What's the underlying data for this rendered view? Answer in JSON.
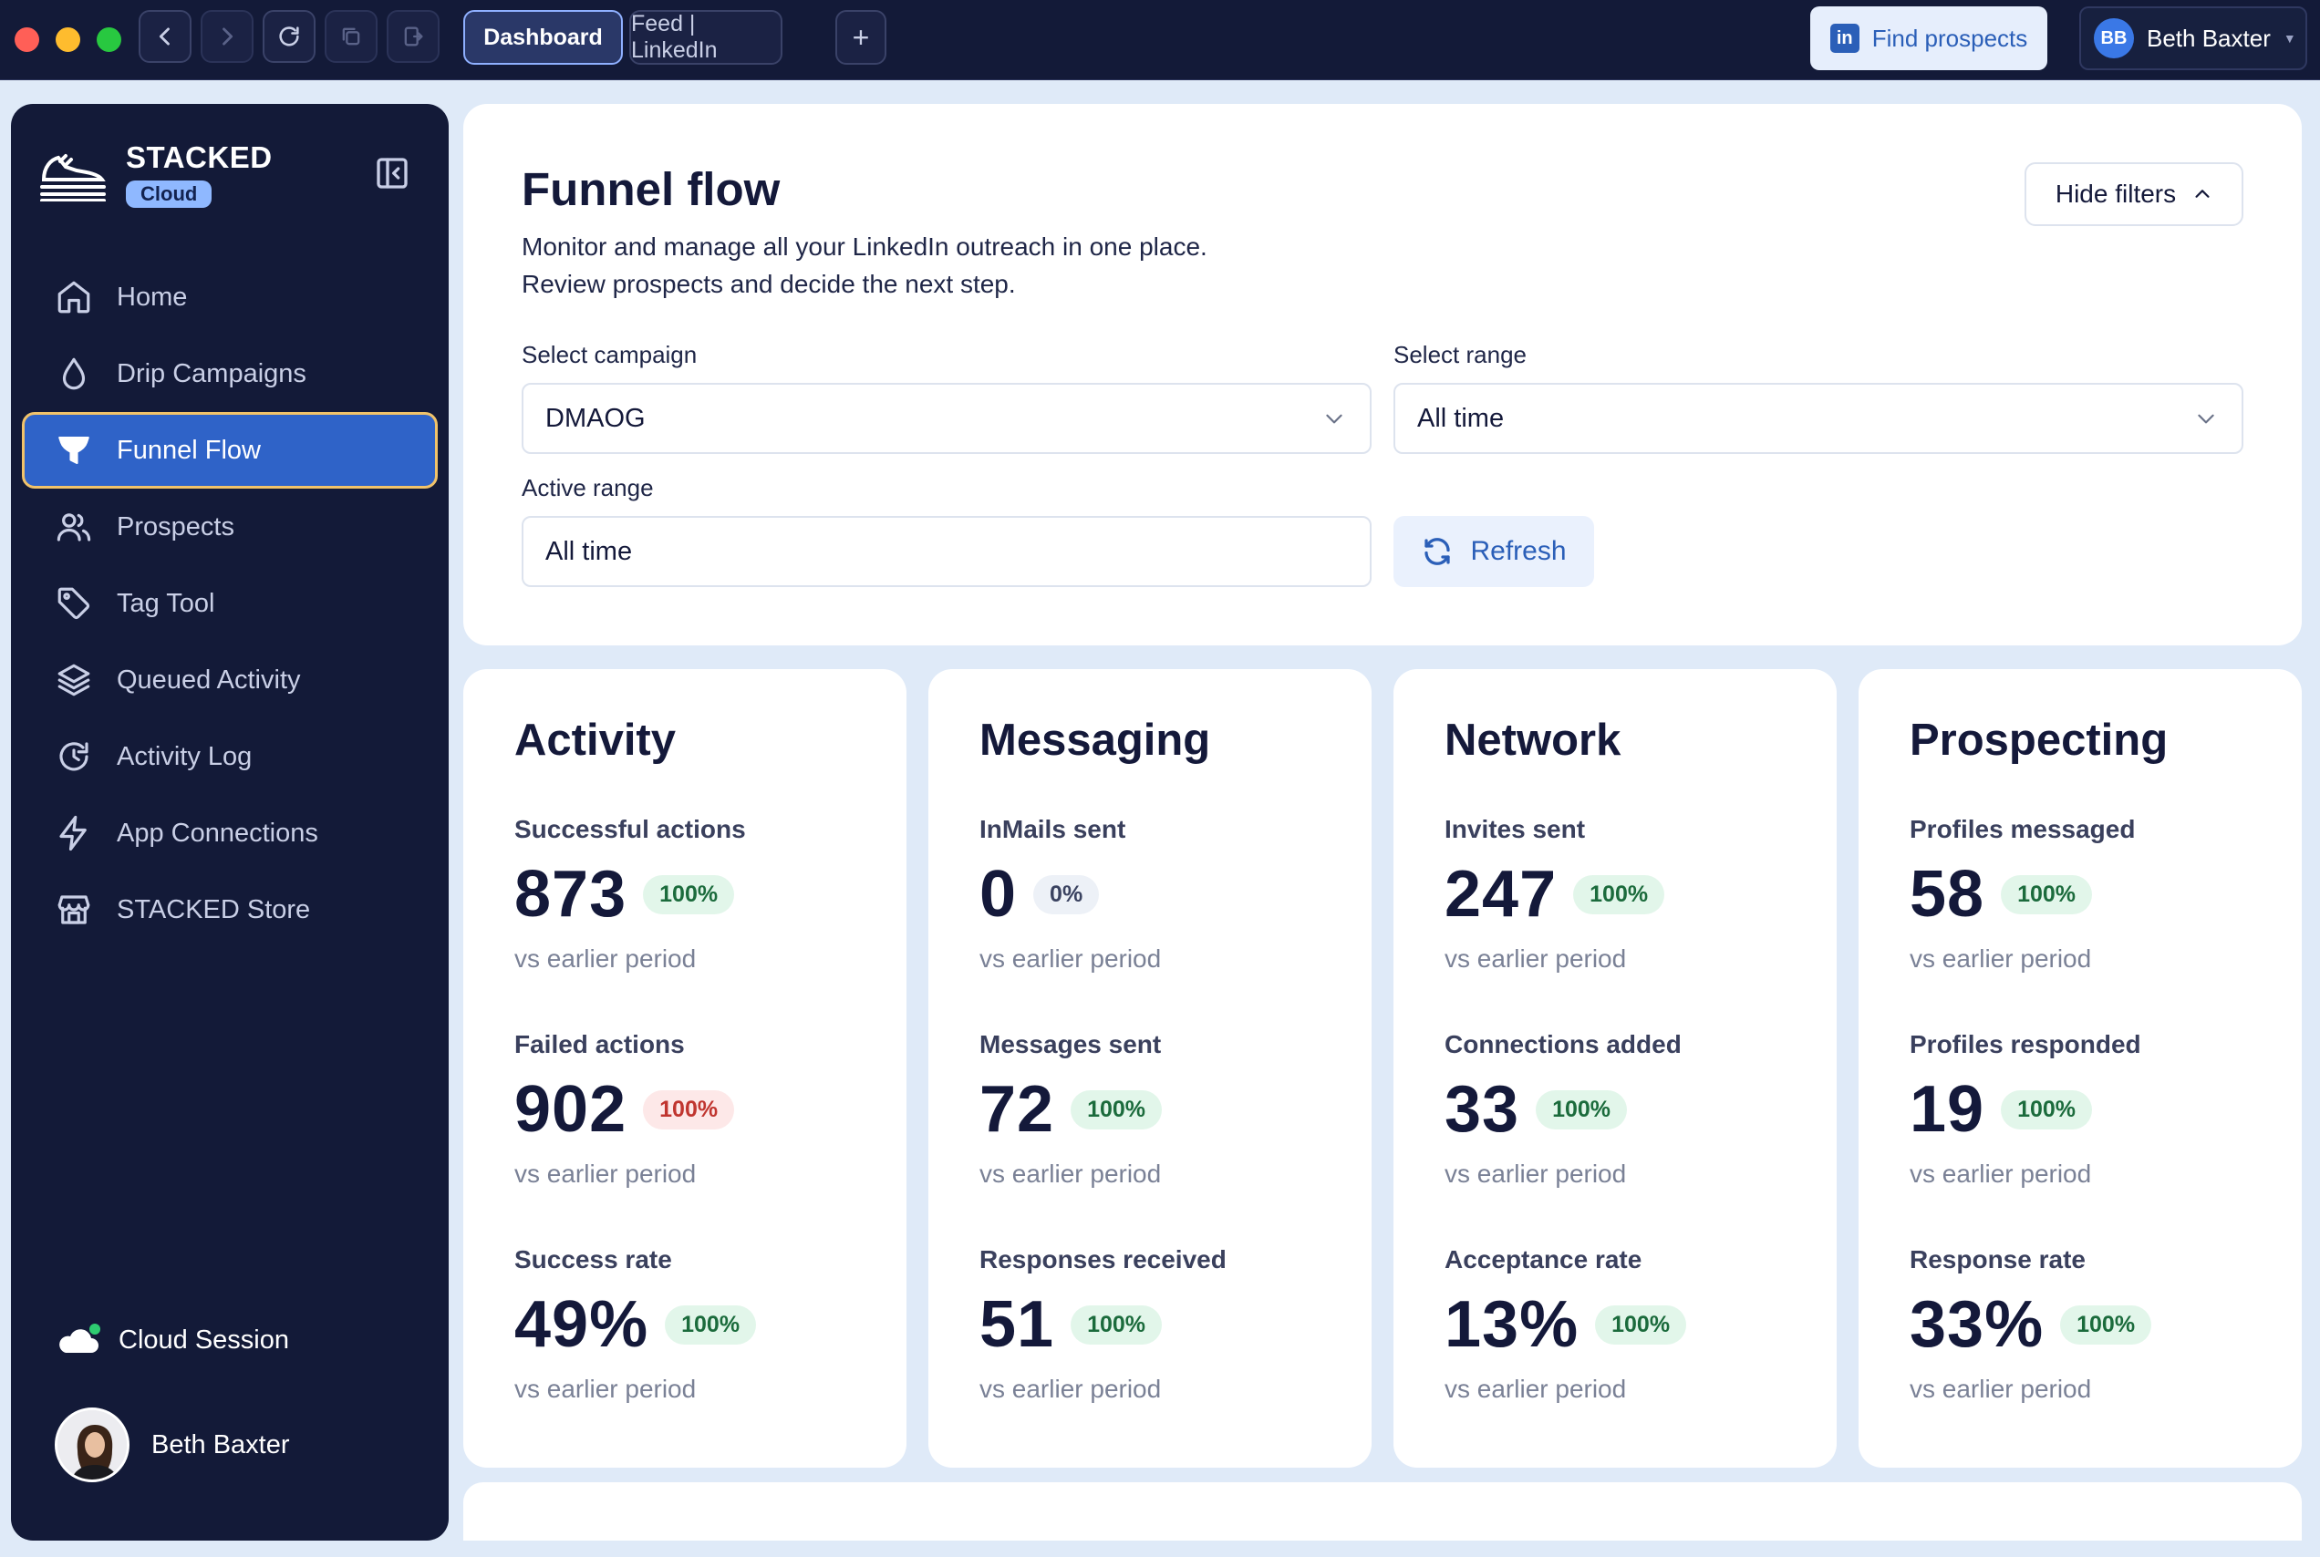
{
  "browser": {
    "tabs": [
      {
        "label": "Dashboard",
        "active": true
      },
      {
        "label": "Feed | LinkedIn",
        "active": false
      }
    ],
    "new_tab_label": "+",
    "find_prospects_label": "Find prospects",
    "user": {
      "initials": "BB",
      "name": "Beth Baxter"
    }
  },
  "sidebar": {
    "brand_name": "STACKED",
    "brand_badge": "Cloud",
    "items": [
      {
        "label": "Home",
        "icon": "home-icon"
      },
      {
        "label": "Drip Campaigns",
        "icon": "droplet-icon"
      },
      {
        "label": "Funnel Flow",
        "icon": "funnel-icon",
        "active": true
      },
      {
        "label": "Prospects",
        "icon": "users-icon"
      },
      {
        "label": "Tag Tool",
        "icon": "tag-icon"
      },
      {
        "label": "Queued Activity",
        "icon": "layers-icon"
      },
      {
        "label": "Activity Log",
        "icon": "history-icon"
      },
      {
        "label": "App Connections",
        "icon": "bolt-icon"
      },
      {
        "label": "STACKED Store",
        "icon": "store-icon"
      }
    ],
    "cloud_session_label": "Cloud Session",
    "profile_name": "Beth Baxter"
  },
  "funnel": {
    "title": "Funnel flow",
    "subtitle_line1": "Monitor and manage all your LinkedIn outreach in one place.",
    "subtitle_line2": "Review prospects and decide the next step.",
    "hide_filters_label": "Hide filters",
    "campaign_label": "Select campaign",
    "campaign_value": "DMAOG",
    "range_label": "Select range",
    "range_value": "All time",
    "active_range_label": "Active range",
    "active_range_value": "All time",
    "refresh_label": "Refresh"
  },
  "stats": [
    {
      "title": "Activity",
      "metrics": [
        {
          "label": "Successful actions",
          "value": "873",
          "change": "100%",
          "tone": "pos",
          "sub": "vs earlier period"
        },
        {
          "label": "Failed actions",
          "value": "902",
          "change": "100%",
          "tone": "neg",
          "sub": "vs earlier period"
        },
        {
          "label": "Success rate",
          "value": "49%",
          "change": "100%",
          "tone": "pos",
          "sub": "vs earlier period"
        }
      ]
    },
    {
      "title": "Messaging",
      "metrics": [
        {
          "label": "InMails sent",
          "value": "0",
          "change": "0%",
          "tone": "neutral",
          "sub": "vs earlier period"
        },
        {
          "label": "Messages sent",
          "value": "72",
          "change": "100%",
          "tone": "pos",
          "sub": "vs earlier period"
        },
        {
          "label": "Responses received",
          "value": "51",
          "change": "100%",
          "tone": "pos",
          "sub": "vs earlier period"
        }
      ]
    },
    {
      "title": "Network",
      "metrics": [
        {
          "label": "Invites sent",
          "value": "247",
          "change": "100%",
          "tone": "pos",
          "sub": "vs earlier period"
        },
        {
          "label": "Connections added",
          "value": "33",
          "change": "100%",
          "tone": "pos",
          "sub": "vs earlier period"
        },
        {
          "label": "Acceptance rate",
          "value": "13%",
          "change": "100%",
          "tone": "pos",
          "sub": "vs earlier period"
        }
      ]
    },
    {
      "title": "Prospecting",
      "metrics": [
        {
          "label": "Profiles messaged",
          "value": "58",
          "change": "100%",
          "tone": "pos",
          "sub": "vs earlier period"
        },
        {
          "label": "Profiles responded",
          "value": "19",
          "change": "100%",
          "tone": "pos",
          "sub": "vs earlier period"
        },
        {
          "label": "Response rate",
          "value": "33%",
          "change": "100%",
          "tone": "pos",
          "sub": "vs earlier period"
        }
      ]
    }
  ]
}
